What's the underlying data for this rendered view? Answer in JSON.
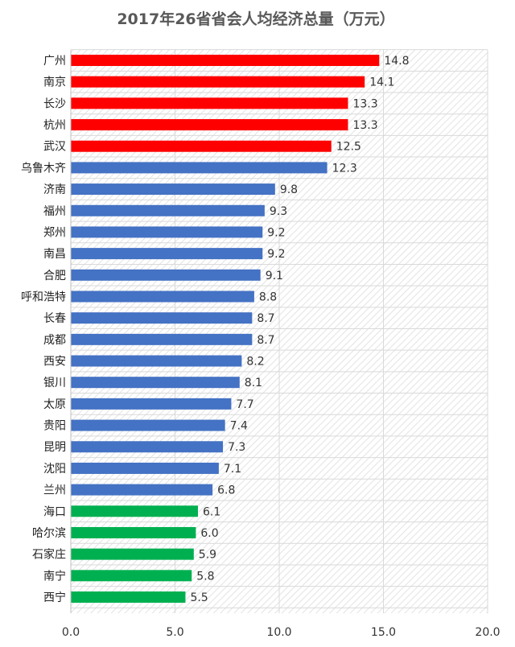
{
  "chart_data": {
    "type": "bar",
    "orientation": "horizontal",
    "title": "2017年26省省会人均经济总量（万元）",
    "xlabel": "",
    "ylabel": "",
    "xlim": [
      0,
      20
    ],
    "xticks": [
      "0.0",
      "5.0",
      "10.0",
      "15.0",
      "20.0"
    ],
    "grid": true,
    "categories": [
      "广州",
      "南京",
      "长沙",
      "杭州",
      "武汉",
      "乌鲁木齐",
      "济南",
      "福州",
      "郑州",
      "南昌",
      "合肥",
      "呼和浩特",
      "长春",
      "成都",
      "西安",
      "银川",
      "太原",
      "贵阳",
      "昆明",
      "沈阳",
      "兰州",
      "海口",
      "哈尔滨",
      "石家庄",
      "南宁",
      "西宁"
    ],
    "values": [
      14.8,
      14.1,
      13.3,
      13.3,
      12.5,
      12.3,
      9.8,
      9.3,
      9.2,
      9.2,
      9.1,
      8.8,
      8.7,
      8.7,
      8.2,
      8.1,
      7.7,
      7.4,
      7.3,
      7.1,
      6.8,
      6.1,
      6.0,
      5.9,
      5.8,
      5.5
    ],
    "labels": [
      "14.8",
      "14.1",
      "13.3",
      "13.3",
      "12.5",
      "12.3",
      "9.8",
      "9.3",
      "9.2",
      "9.2",
      "9.1",
      "8.8",
      "8.7",
      "8.7",
      "8.2",
      "8.1",
      "7.7",
      "7.4",
      "7.3",
      "7.1",
      "6.8",
      "6.1",
      "6.0",
      "5.9",
      "5.8",
      "5.5"
    ],
    "bar_colors": [
      "#ff0000",
      "#ff0000",
      "#ff0000",
      "#ff0000",
      "#ff0000",
      "#4472c4",
      "#4472c4",
      "#4472c4",
      "#4472c4",
      "#4472c4",
      "#4472c4",
      "#4472c4",
      "#4472c4",
      "#4472c4",
      "#4472c4",
      "#4472c4",
      "#4472c4",
      "#4472c4",
      "#4472c4",
      "#4472c4",
      "#4472c4",
      "#00b050",
      "#00b050",
      "#00b050",
      "#00b050",
      "#00b050"
    ]
  }
}
